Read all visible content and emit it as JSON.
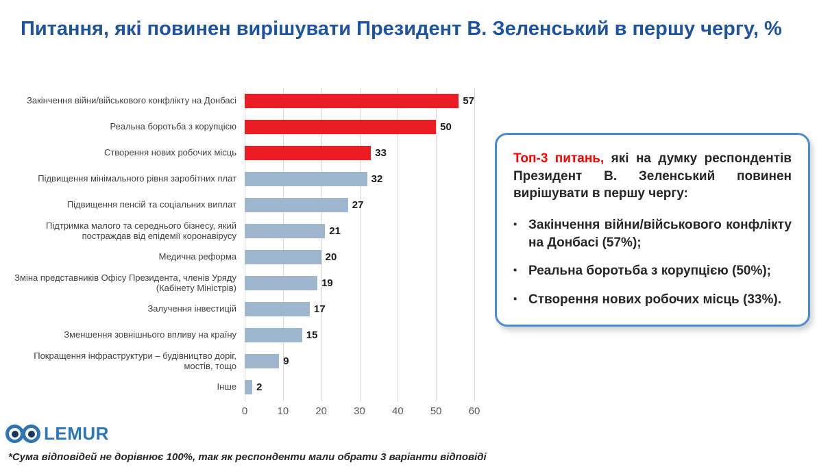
{
  "page": {
    "title": "Питання, які повинен вирішувати Президент В. Зеленський в першу чергу, %",
    "footnote": "*Сума відповідей не дорівнює 100%, так як респонденти мали обрати 3 варіанти відповіді",
    "logo_text": "LEMUR"
  },
  "colors": {
    "title_blue": "#1E53A0",
    "bar_red": "#EC1C24",
    "bar_gray": "#9EB6CE",
    "callout_border": "#4A8BD4",
    "accent_red": "#FF0000"
  },
  "chart_data": {
    "type": "bar",
    "orientation": "horizontal",
    "title": "Питання, які повинен вирішувати Президент В. Зеленський в першу чергу, %",
    "xlabel": "",
    "ylabel": "",
    "xlim": [
      0,
      60
    ],
    "xticks": [
      0,
      10,
      20,
      30,
      40,
      50,
      60
    ],
    "grid": true,
    "categories": [
      "Закінчення війни/військового конфлікту на Донбасі",
      "Реальна боротьба з корупцією",
      "Створення нових робочих місць",
      "Підвищення мінімального рівня заробітних плат",
      "Підвищення пенсій та соціальних виплат",
      "Підтримка малого та середнього бізнесу, який постраждав від епідемії коронавірусу",
      "Медична реформа",
      "Зміна представників Офісу Президента, членів Уряду (Кабінету Міністрів)",
      "Залучення інвестицій",
      "Зменшення зовнішнього впливу на країну",
      "Покращення інфраструктури – будівництво доріг, мостів, тощо",
      "Інше"
    ],
    "values": [
      57,
      50,
      33,
      32,
      27,
      21,
      20,
      19,
      17,
      15,
      9,
      2
    ],
    "bar_colors": [
      "red",
      "red",
      "red",
      "gray",
      "gray",
      "gray",
      "gray",
      "gray",
      "gray",
      "gray",
      "gray",
      "gray"
    ]
  },
  "callout": {
    "lead_red": "Топ-3 питань,",
    "lead_rest": " які на думку респондентів Президент В. Зеленський повинен вирішувати в першу чергу:",
    "bullets": [
      "Закінчення війни/військового конфлікту на Донбасі (57%);",
      "Реальна боротьба з корупцією (50%);",
      "Створення нових робочих місць (33%)."
    ]
  }
}
